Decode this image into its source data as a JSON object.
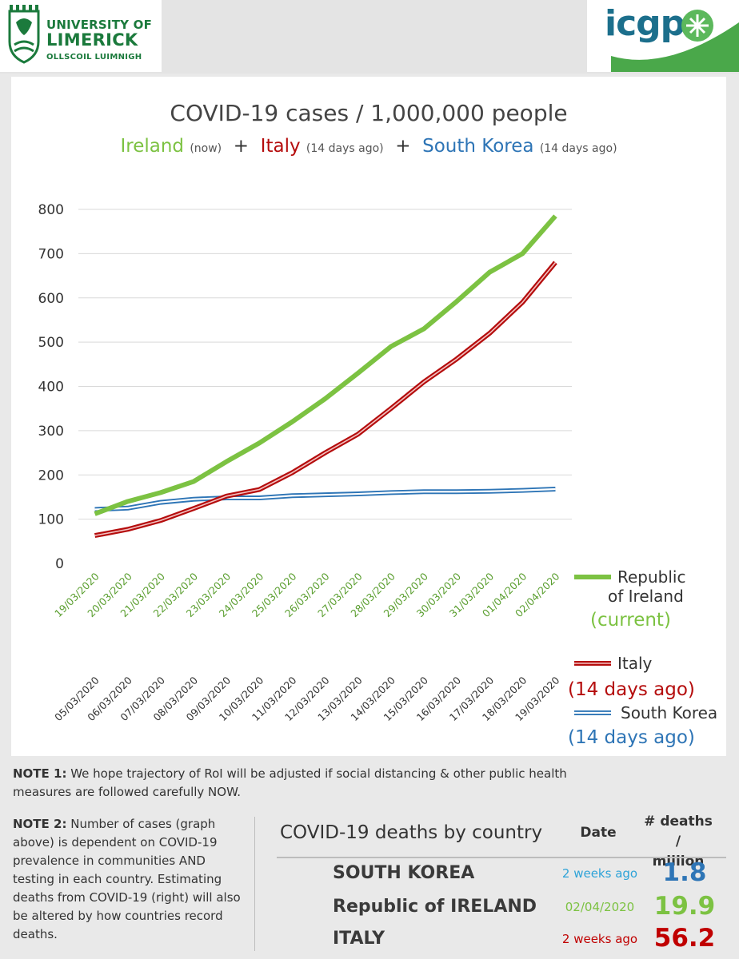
{
  "header": {
    "ul_line1": "UNIVERSITY OF",
    "ul_line2": "LIMERICK",
    "ul_line3": "OLLSCOIL LUIMNIGH",
    "icgp": "icgp"
  },
  "colors": {
    "ireland": "#7cc242",
    "italy": "#b50d0d",
    "south_korea": "#2e75b6"
  },
  "chart_data": {
    "type": "line",
    "title": "COVID-19 cases / 1,000,000 people",
    "subtitle": {
      "ireland": "Ireland",
      "ireland_note": "(now)",
      "plus": "+",
      "italy": "Italy",
      "italy_note": "(14 days ago)",
      "korea": "South Korea",
      "korea_note": "(14 days ago)"
    },
    "ylim": [
      0,
      800
    ],
    "yticks": [
      "0",
      "100",
      "200",
      "300",
      "400",
      "500",
      "600",
      "700",
      "800"
    ],
    "x_primary": [
      "19/03/2020",
      "20/03/2020",
      "21/03/2020",
      "22/03/2020",
      "23/03/2020",
      "24/03/2020",
      "25/03/2020",
      "26/03/2020",
      "27/03/2020",
      "28/03/2020",
      "29/03/2020",
      "30/03/2020",
      "31/03/2020",
      "01/04/2020",
      "02/04/2020"
    ],
    "x_secondary": [
      "05/03/2020",
      "06/03/2020",
      "07/03/2020",
      "08/03/2020",
      "09/03/2020",
      "10/03/2020",
      "11/03/2020",
      "12/03/2020",
      "13/03/2020",
      "14/03/2020",
      "15/03/2020",
      "16/03/2020",
      "17/03/2020",
      "18/03/2020",
      "19/03/2020"
    ],
    "grid": true,
    "series": [
      {
        "name": "Republic of Ireland",
        "name_line1": "Republic",
        "name_line2": "of Ireland",
        "note": "(current)",
        "color": "#7cc242",
        "values": [
          112,
          140,
          160,
          185,
          230,
          272,
          320,
          372,
          430,
          490,
          530,
          592,
          658,
          700,
          785
        ]
      },
      {
        "name": "Italy",
        "note": "(14 days ago)",
        "color": "#b50d0d",
        "values": [
          63,
          77,
          97,
          124,
          152,
          167,
          205,
          250,
          292,
          350,
          410,
          462,
          520,
          590,
          680
        ]
      },
      {
        "name": "South Korea",
        "note": "(14 days ago)",
        "color": "#2e75b6",
        "values": [
          122,
          125,
          138,
          145,
          148,
          148,
          153,
          155,
          157,
          160,
          162,
          162,
          163,
          165,
          168
        ]
      }
    ]
  },
  "notes": {
    "note1_label": "NOTE 1:",
    "note1_text": " We hope trajectory of RoI will be adjusted if social distancing & other public health measures are followed carefully NOW.",
    "note2_label": "NOTE 2:",
    "note2_text": " Number of cases (graph above) is dependent on COVID-19 prevalence in communities AND testing in each country. Estimating deaths from COVID-19 (right) will also be altered by how countries record deaths."
  },
  "deaths_table": {
    "title": "COVID-19 deaths by country",
    "date_header": "Date",
    "deaths_header_line1": "# deaths /",
    "deaths_header_line2": "million",
    "rows": [
      {
        "country": "SOUTH KOREA",
        "date": "2 weeks ago",
        "value": "1.8",
        "color": "#2e75b6",
        "date_color": "#2ea3d8"
      },
      {
        "country": "Republic of IRELAND",
        "date": "02/04/2020",
        "value": "19.9",
        "color": "#7cc242",
        "date_color": "#7cc242"
      },
      {
        "country": "ITALY",
        "date": "2 weeks ago",
        "value": "56.2",
        "color": "#c00000",
        "date_color": "#c00000"
      }
    ]
  }
}
